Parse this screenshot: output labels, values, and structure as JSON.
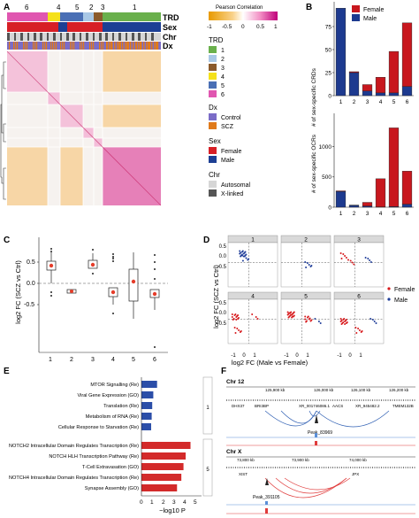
{
  "panels": {
    "A": {
      "letter": "A",
      "cluster_labels": [
        "6",
        "4",
        "5",
        "2",
        "3",
        "1"
      ],
      "row_labels": [
        "TRD",
        "Sex",
        "Chr",
        "Dx"
      ],
      "colorbar_title": "Pearson Correlation",
      "colorbar_ticks": [
        "-1",
        "-0.5",
        "0",
        "0.5",
        "1"
      ],
      "legend": {
        "trd_title": "TRD",
        "trd_items": [
          {
            "label": "1",
            "color": "#6ab04c"
          },
          {
            "label": "2",
            "color": "#a9c8e6"
          },
          {
            "label": "3",
            "color": "#8b5a2b"
          },
          {
            "label": "4",
            "color": "#f5e11a"
          },
          {
            "label": "5",
            "color": "#4a6fb5"
          },
          {
            "label": "6",
            "color": "#e056b0"
          }
        ],
        "dx_title": "Dx",
        "dx_items": [
          {
            "label": "Control",
            "color": "#7b6cc7"
          },
          {
            "label": "SCZ",
            "color": "#e07a1b"
          }
        ],
        "sex_title": "Sex",
        "sex_items": [
          {
            "label": "Female",
            "color": "#d71f26"
          },
          {
            "label": "Male",
            "color": "#1d3f94"
          }
        ],
        "chr_title": "Chr",
        "chr_items": [
          {
            "label": "Autosomal",
            "color": "#d6d6d6"
          },
          {
            "label": "X-linked",
            "color": "#555555"
          }
        ]
      }
    },
    "B": {
      "letter": "B",
      "legend": [
        {
          "label": "Female",
          "color": "#c8171e"
        },
        {
          "label": "Male",
          "color": "#1d3a8f"
        }
      ],
      "crd_ylabel": "# of sex-specific CRDs",
      "ocr_ylabel": "# of sex-specific OCRs"
    },
    "C": {
      "letter": "C",
      "ylabel": "log2 FC (SCZ vs Ctrl)"
    },
    "D": {
      "letter": "D",
      "facets": [
        "1",
        "2",
        "3",
        "4",
        "5",
        "6"
      ],
      "xlabel": "log2 FC (Male vs Female)",
      "ylabel": "log2 FC (SCZ vs Ctrl)",
      "legend": [
        {
          "label": "Female",
          "color": "#d7191c"
        },
        {
          "label": "Male",
          "color": "#1f3d99"
        }
      ]
    },
    "E": {
      "letter": "E",
      "xlabel": "−log10 P",
      "ticks": [
        "0",
        "1",
        "2",
        "3",
        "4",
        "5"
      ],
      "strip_labels": [
        "1",
        "5"
      ],
      "terms_blue": [
        "MTOR Signalling (Re)",
        "Viral Gene Expression (GO)",
        "Translation (Re)",
        "Metabolism of RNA (Re)",
        "Cellular Response to Starvation (Re)"
      ],
      "terms_red": [
        "NOTCH2 Intracellular Domain Regulates Transcription (Re)",
        "NOTCH HLH Transcription Pathway (Re)",
        "T-Cell Extravasation (GO)",
        "NOTCH4 Intracellular Domain Regulates Transcription (Re)",
        "Synapse Assembly (GO)"
      ],
      "values_blue": [
        1.45,
        1.1,
        1.0,
        0.95,
        0.9
      ],
      "values_red": [
        4.55,
        4.1,
        3.9,
        3.7,
        3.3
      ]
    },
    "F": {
      "letter": "F",
      "chr12_label": "Chr 12",
      "chr12_coords": [
        "125,900 kb",
        "126,000 kb",
        "126,100 kb",
        "126,200 kb"
      ],
      "chr12_genes": [
        "DHX37",
        "BRI3BP",
        "XR_001746086.1",
        "AACS",
        "XR_945482.2",
        "TMEM132B"
      ],
      "chr12_peak": "Peak_83969",
      "chrx_label": "Chr X",
      "chrx_coords": [
        "73,800 kb",
        "73,900 kb",
        "74,000 kb"
      ],
      "chrx_genes": [
        "XIST",
        "JPX"
      ],
      "chrx_peak": "Peak_391105"
    }
  },
  "chart_data": [
    {
      "type": "bar",
      "title": "",
      "categories": [
        "1",
        "2",
        "3",
        "4",
        "5",
        "6"
      ],
      "series": [
        {
          "name": "Male",
          "values": [
            95,
            25,
            5,
            3,
            3,
            10
          ]
        },
        {
          "name": "Female",
          "values": [
            0,
            1,
            7,
            17,
            45,
            69
          ]
        }
      ],
      "stacked": true,
      "ylabel": "# of sex-specific CRDs",
      "yticks": [
        0,
        25,
        50,
        75
      ],
      "ylim": [
        0,
        100
      ]
    },
    {
      "type": "bar",
      "title": "",
      "categories": [
        "1",
        "2",
        "3",
        "4",
        "5",
        "6"
      ],
      "series": [
        {
          "name": "Male",
          "values": [
            260,
            30,
            20,
            5,
            10,
            50
          ]
        },
        {
          "name": "Female",
          "values": [
            10,
            5,
            60,
            465,
            1300,
            545
          ]
        }
      ],
      "stacked": true,
      "ylabel": "# of sex-specific OCRs",
      "yticks": [
        0,
        500,
        1000
      ],
      "ylim": [
        0,
        1550
      ]
    }
  ]
}
